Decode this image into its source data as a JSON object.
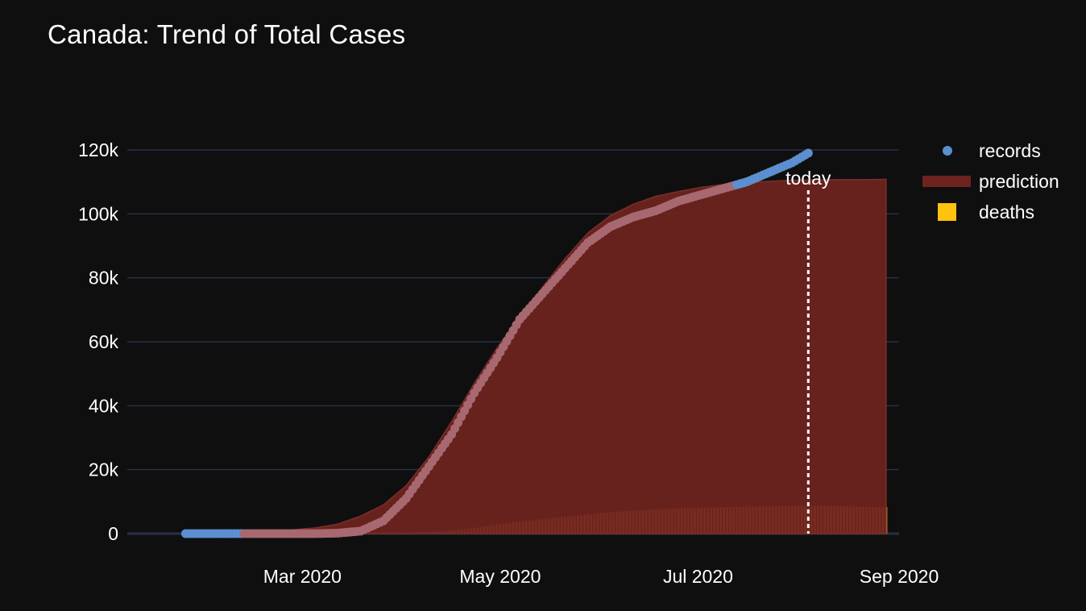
{
  "title": "Canada: Trend of Total Cases",
  "today_label": "today",
  "colors": {
    "background": "#0f0f10",
    "grid": "#2a2f45",
    "records": "#5b8fcf",
    "records_overlap": "#a86870",
    "prediction": "#6e231f",
    "prediction_edge": "#7d2e29",
    "deaths": "#ff9a2e",
    "deaths_legend": "#ffc20e",
    "today_line": "#ffffff"
  },
  "chart_data": {
    "type": "line",
    "title": "Canada: Trend of Total Cases",
    "x_axis": {
      "type": "date",
      "range": [
        "2020-01-07",
        "2020-09-01"
      ],
      "ticks": [
        "2020-03-01",
        "2020-05-01",
        "2020-07-01",
        "2020-09-01"
      ],
      "tick_labels": [
        "Mar 2020",
        "May 2020",
        "Jul 2020",
        "Sep 2020"
      ]
    },
    "y_axis": {
      "range": [
        0,
        120000
      ],
      "ticks": [
        0,
        20000,
        40000,
        60000,
        80000,
        100000,
        120000
      ],
      "tick_labels": [
        "0",
        "20k",
        "40k",
        "60k",
        "80k",
        "100k",
        "120k"
      ],
      "grid": true
    },
    "legend": {
      "placement": "top-right",
      "entries": [
        "records",
        "prediction",
        "deaths"
      ]
    },
    "today": "2020-08-04",
    "series": [
      {
        "name": "records",
        "kind": "scatter",
        "x": [
          "2020-01-25",
          "2020-02-05",
          "2020-02-15",
          "2020-02-25",
          "2020-03-05",
          "2020-03-12",
          "2020-03-19",
          "2020-03-26",
          "2020-04-02",
          "2020-04-09",
          "2020-04-16",
          "2020-04-23",
          "2020-04-30",
          "2020-05-07",
          "2020-05-14",
          "2020-05-21",
          "2020-05-28",
          "2020-06-04",
          "2020-06-11",
          "2020-06-18",
          "2020-06-25",
          "2020-07-02",
          "2020-07-09",
          "2020-07-16",
          "2020-07-23",
          "2020-07-30",
          "2020-08-04"
        ],
        "y": [
          0,
          0,
          0,
          0,
          0,
          150,
          800,
          4000,
          11000,
          21000,
          31000,
          44000,
          55000,
          67000,
          75000,
          83000,
          91000,
          96000,
          99000,
          101000,
          104000,
          106000,
          108000,
          110000,
          113000,
          116000,
          119000
        ]
      },
      {
        "name": "prediction",
        "kind": "area",
        "x": [
          "2020-01-25",
          "2020-02-05",
          "2020-02-15",
          "2020-02-25",
          "2020-03-05",
          "2020-03-12",
          "2020-03-19",
          "2020-03-26",
          "2020-04-02",
          "2020-04-09",
          "2020-04-16",
          "2020-04-23",
          "2020-04-30",
          "2020-05-07",
          "2020-05-14",
          "2020-05-21",
          "2020-05-28",
          "2020-06-04",
          "2020-06-11",
          "2020-06-18",
          "2020-06-25",
          "2020-07-02",
          "2020-07-09",
          "2020-07-16",
          "2020-07-23",
          "2020-07-30",
          "2020-08-06",
          "2020-08-13",
          "2020-08-20",
          "2020-08-28"
        ],
        "y": [
          0,
          200,
          500,
          1000,
          1800,
          3000,
          5500,
          9000,
          15000,
          24000,
          35000,
          47000,
          58000,
          68000,
          77000,
          86000,
          94000,
          99500,
          103000,
          105500,
          107000,
          108300,
          109200,
          109800,
          110200,
          110500,
          110600,
          110700,
          110700,
          110800
        ]
      },
      {
        "name": "deaths",
        "kind": "bar",
        "x": [
          "2020-01-25",
          "2020-02-25",
          "2020-03-19",
          "2020-03-26",
          "2020-04-02",
          "2020-04-09",
          "2020-04-16",
          "2020-04-23",
          "2020-04-30",
          "2020-05-07",
          "2020-05-14",
          "2020-05-21",
          "2020-05-28",
          "2020-06-04",
          "2020-06-11",
          "2020-06-18",
          "2020-06-25",
          "2020-07-02",
          "2020-07-09",
          "2020-07-16",
          "2020-07-23",
          "2020-07-30",
          "2020-08-06",
          "2020-08-13",
          "2020-08-20",
          "2020-08-28"
        ],
        "y": [
          0,
          0,
          0,
          50,
          200,
          500,
          1000,
          1800,
          2800,
          3700,
          4500,
          5300,
          6000,
          6700,
          7200,
          7600,
          7900,
          8100,
          8250,
          8400,
          8500,
          8600,
          8700,
          8600,
          8400,
          8300
        ]
      }
    ]
  }
}
